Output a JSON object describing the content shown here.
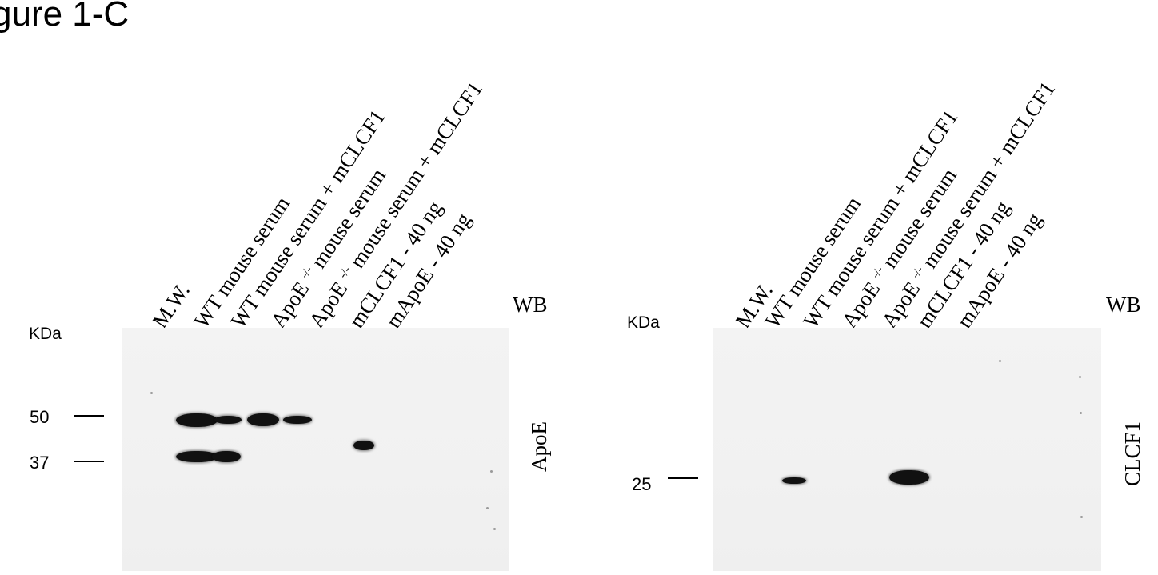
{
  "figure": {
    "title": "gure 1-C"
  },
  "left_panel": {
    "kda_label": "KDa",
    "wb_label": "WB",
    "antibody": "ApoE",
    "markers": [
      {
        "label": "50",
        "kda": 50
      },
      {
        "label": "37",
        "kda": 37
      }
    ],
    "lanes": [
      {
        "text": "M.W.",
        "sup": "",
        "rest": ""
      },
      {
        "text": "WT mouse serum",
        "sup": "",
        "rest": ""
      },
      {
        "text": "WT mouse serum + mCLCF1",
        "sup": "",
        "rest": ""
      },
      {
        "text": "ApoE ",
        "sup": "-/-",
        "rest": " mouse serum"
      },
      {
        "text": "ApoE ",
        "sup": "-/-",
        "rest": " mouse serum + mCLCF1"
      },
      {
        "text": "mCLCF1 - 40 ng",
        "sup": "",
        "rest": ""
      },
      {
        "text": "mApoE - 40 ng",
        "sup": "",
        "rest": ""
      }
    ]
  },
  "right_panel": {
    "kda_label": "KDa",
    "wb_label": "WB",
    "antibody": "CLCF1",
    "markers": [
      {
        "label": "25",
        "kda": 25
      }
    ],
    "lanes": [
      {
        "text": "M.W.",
        "sup": "",
        "rest": ""
      },
      {
        "text": "WT mouse serum",
        "sup": "",
        "rest": ""
      },
      {
        "text": "WT mouse serum + mCLCF1",
        "sup": "",
        "rest": ""
      },
      {
        "text": "ApoE ",
        "sup": "-/-",
        "rest": " mouse serum"
      },
      {
        "text": "ApoE ",
        "sup": "-/-",
        "rest": " mouse serum + mCLCF1"
      },
      {
        "text": "mCLCF1 - 40 ng",
        "sup": "",
        "rest": ""
      },
      {
        "text": "mApoE - 40 ng",
        "sup": "",
        "rest": ""
      }
    ]
  }
}
